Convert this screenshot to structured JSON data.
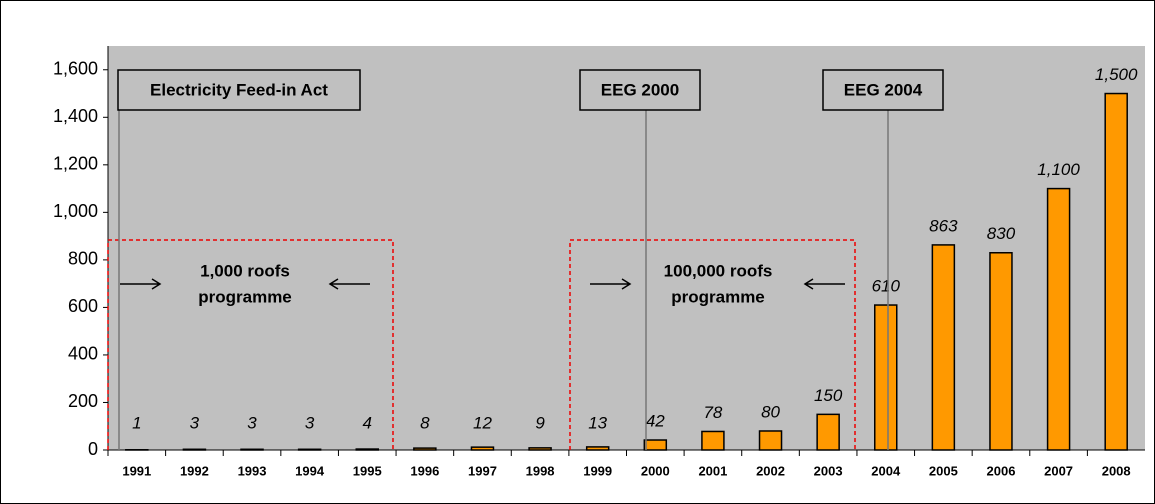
{
  "chart_data": {
    "type": "bar",
    "categories": [
      "1991",
      "1992",
      "1993",
      "1994",
      "1995",
      "1996",
      "1997",
      "1998",
      "1999",
      "2000",
      "2001",
      "2002",
      "2003",
      "2004",
      "2005",
      "2006",
      "2007",
      "2008"
    ],
    "values": [
      1,
      3,
      3,
      3,
      4,
      8,
      12,
      9,
      13,
      42,
      78,
      80,
      150,
      610,
      863,
      830,
      1100,
      1500
    ],
    "value_labels": [
      "1",
      "3",
      "3",
      "3",
      "4",
      "8",
      "12",
      "9",
      "13",
      "42",
      "78",
      "80",
      "150",
      "610",
      "863",
      "830",
      "1,100",
      "1,500"
    ],
    "color": "#ff9900",
    "ylim": [
      0,
      1700
    ],
    "yticks": [
      0,
      200,
      400,
      600,
      800,
      {
        "value": 1000,
        "label": "1,000"
      },
      {
        "value": 1200,
        "label": "1,200"
      },
      {
        "value": 1400,
        "label": "1,400"
      },
      {
        "value": 1600,
        "label": "1,600"
      }
    ],
    "annotations": [
      "Electricity Feed-in Act",
      "EEG 2000",
      "EEG 2004"
    ],
    "programmes": [
      {
        "lines": [
          "1,000 roofs",
          "programme"
        ]
      },
      {
        "lines": [
          "100,000 roofs",
          "programme"
        ]
      }
    ]
  }
}
